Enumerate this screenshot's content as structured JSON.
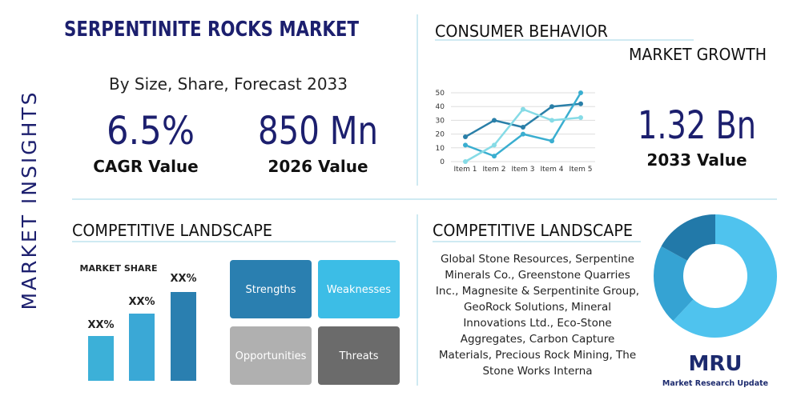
{
  "sidebar": "MARKET INSIGHTS",
  "header": {
    "title": "SERPENTINITE ROCKS MARKET",
    "subtitle": "By Size, Share, Forecast 2033"
  },
  "stats": [
    {
      "value": "6.5%",
      "label": "CAGR Value"
    },
    {
      "value": "850 Mn",
      "label": "2026 Value"
    },
    {
      "value": "1.32 Bn",
      "label": "2033 Value"
    }
  ],
  "consumer": {
    "title": "CONSUMER BEHAVIOR",
    "subtitle": "MARKET GROWTH"
  },
  "chart_data": [
    {
      "type": "line",
      "categories": [
        "Item 1",
        "Item 2",
        "Item 3",
        "Item 4",
        "Item 5"
      ],
      "series": [
        {
          "color": "#2a7fa8",
          "values": [
            18,
            30,
            25,
            40,
            42
          ]
        },
        {
          "color": "#3aaed0",
          "values": [
            12,
            4,
            20,
            15,
            50
          ]
        },
        {
          "color": "#86dbe6",
          "values": [
            0,
            12,
            38,
            30,
            32
          ]
        }
      ],
      "ylim": [
        0,
        50
      ],
      "yticks": [
        0,
        10,
        20,
        30,
        40,
        50
      ],
      "grid": true
    },
    {
      "type": "pie",
      "values": [
        62,
        21,
        17
      ],
      "colors": [
        "#4fc3ee",
        "#35a3d3",
        "#2279a9"
      ]
    }
  ],
  "competitive_left": {
    "title": "COMPETITIVE LANDSCAPE",
    "chart_title": "MARKET SHARE",
    "bar_labels": [
      "XX%",
      "XX%",
      "XX%"
    ],
    "swot": [
      "Strengths",
      "Weaknesses",
      "Opportunities",
      "Threats"
    ]
  },
  "competitive_right": {
    "title": "COMPETITIVE LANDSCAPE",
    "text": "Global Stone Resources, Serpentine Minerals Co., Greenstone Quarries Inc., Magnesite & Serpentinite Group, GeoRock Solutions, Mineral Innovations Ltd., Eco-Stone Aggregates, Carbon Capture Materials, Precious Rock Mining, The Stone Works Interna"
  },
  "logo": {
    "mark": "MRU",
    "name": "Market Research Update"
  }
}
